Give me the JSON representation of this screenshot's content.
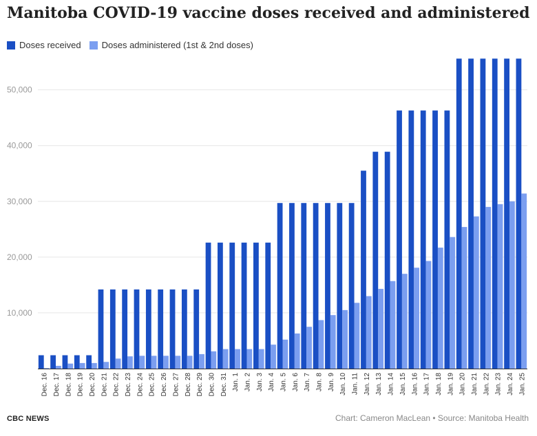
{
  "title": "Manitoba COVID-19 vaccine doses received and administered",
  "legend": {
    "received_label": "Doses received",
    "administered_label": "Doses administered (1st & 2nd doses)"
  },
  "footer": {
    "source_brand": "CBC NEWS",
    "credit": "Chart: Cameron MacLean • Source: Manitoba Health"
  },
  "colors": {
    "received": "#1a4fc4",
    "administered": "#7b9ef0",
    "grid": "#e6e6e6",
    "tick_text": "#999999",
    "category_text": "#333333"
  },
  "chart_data": {
    "type": "bar",
    "title": "Manitoba COVID-19 vaccine doses received and administered",
    "xlabel": "",
    "ylabel": "",
    "ylim": [
      0,
      56000
    ],
    "yticks": [
      0,
      10000,
      20000,
      30000,
      40000,
      50000
    ],
    "ytick_labels": [
      "",
      "10,000",
      "20,000",
      "30,000",
      "40,000",
      "50,000"
    ],
    "grid": true,
    "legend_position": "top-left",
    "categories": [
      "Dec. 16",
      "Dec. 17",
      "Dec. 18",
      "Dec. 19",
      "Dec. 20",
      "Dec. 21",
      "Dec. 22",
      "Dec. 23",
      "Dec. 24",
      "Dec. 25",
      "Dec. 26",
      "Dec. 27",
      "Dec. 28",
      "Dec. 29",
      "Dec. 30",
      "Dec. 31",
      "Jan. 1",
      "Jan. 2",
      "Jan. 3",
      "Jan. 4",
      "Jan. 5",
      "Jan. 6",
      "Jan. 7",
      "Jan. 8",
      "Jan. 9",
      "Jan. 10",
      "Jan. 11",
      "Jan. 12",
      "Jan. 13",
      "Jan. 14",
      "Jan. 15",
      "Jan. 16",
      "Jan. 17",
      "Jan. 18",
      "Jan. 19",
      "Jan. 20",
      "Jan. 21",
      "Jan. 22",
      "Jan. 23",
      "Jan. 24",
      "Jan. 25"
    ],
    "series": [
      {
        "name": "Doses received",
        "values": [
          2400,
          2400,
          2400,
          2400,
          2400,
          14200,
          14200,
          14200,
          14200,
          14200,
          14200,
          14200,
          14200,
          14200,
          22600,
          22600,
          22600,
          22600,
          22600,
          22600,
          29700,
          29700,
          29700,
          29700,
          29700,
          29700,
          29700,
          35500,
          38900,
          38900,
          46300,
          46300,
          46300,
          46300,
          46300,
          55600,
          55600,
          55600,
          55600,
          55600,
          55600
        ]
      },
      {
        "name": "Doses administered (1st & 2nd doses)",
        "values": [
          100,
          500,
          900,
          1000,
          1000,
          1200,
          1800,
          2200,
          2300,
          2300,
          2300,
          2300,
          2300,
          2600,
          3100,
          3500,
          3500,
          3500,
          3500,
          4300,
          5200,
          6300,
          7500,
          8700,
          9600,
          10500,
          11800,
          13000,
          14300,
          15700,
          17000,
          18100,
          19300,
          21700,
          23600,
          25400,
          27300,
          29000,
          29500,
          30000,
          31400
        ]
      }
    ]
  }
}
